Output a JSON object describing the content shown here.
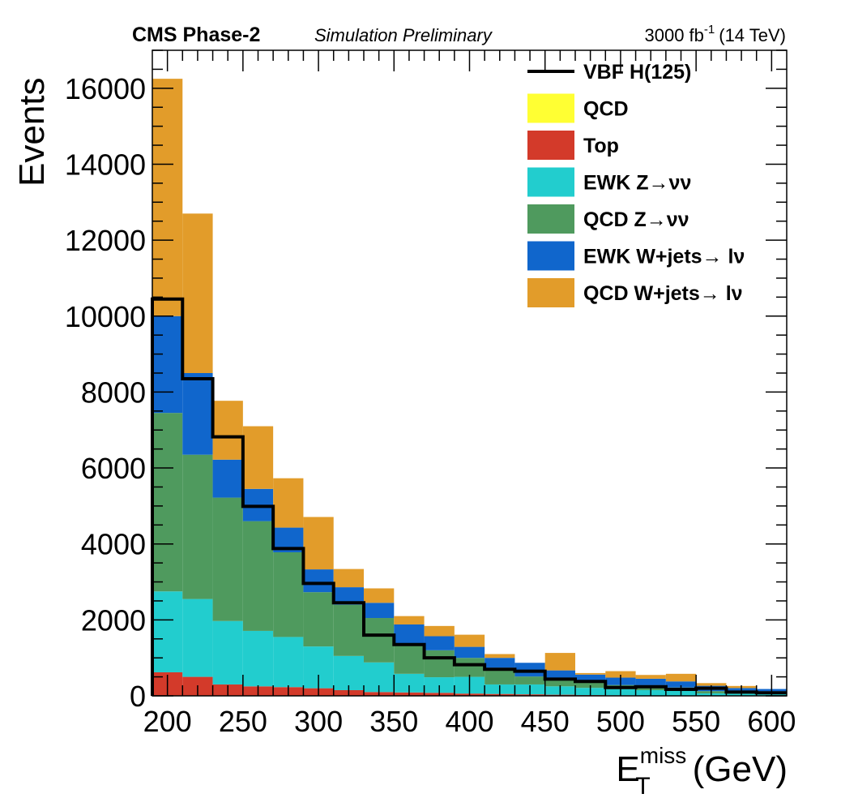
{
  "header": {
    "experiment": "CMS Phase-2",
    "status": "Simulation Preliminary",
    "lumi_value": "3000 fb",
    "lumi_exponent": "-1",
    "lumi_energy": "(14 TeV)"
  },
  "axes": {
    "x_title_main": "E",
    "x_title_sub": "T",
    "x_title_sup": "miss",
    "x_title_unit": "(GeV)",
    "y_title": "Events"
  },
  "chart_data": {
    "type": "bar",
    "stacked": true,
    "histogram": true,
    "bin_edges": [
      190,
      210,
      230,
      250,
      270,
      290,
      310,
      330,
      350,
      370,
      390,
      410,
      430,
      450,
      470,
      490,
      510,
      530,
      550,
      570,
      590,
      610
    ],
    "xlim": [
      190,
      610
    ],
    "ylim": [
      0,
      17000
    ],
    "x_ticks": [
      200,
      250,
      300,
      350,
      400,
      450,
      500,
      550,
      600
    ],
    "y_ticks": [
      0,
      2000,
      4000,
      6000,
      8000,
      10000,
      12000,
      14000,
      16000
    ],
    "xlabel": "E_T^miss (GeV)",
    "ylabel": "Events",
    "legend_position": "top-right",
    "series": [
      {
        "name": "Top",
        "color": "#d33a2a",
        "values": [
          620,
          500,
          300,
          250,
          230,
          200,
          150,
          100,
          90,
          80,
          60,
          50,
          40,
          30,
          20,
          15,
          10,
          10,
          5,
          5,
          0
        ]
      },
      {
        "name": "QCD",
        "color": "#ffff33",
        "values": [
          0,
          0,
          0,
          0,
          0,
          0,
          0,
          0,
          0,
          0,
          0,
          0,
          0,
          0,
          0,
          0,
          0,
          0,
          0,
          0,
          0
        ]
      },
      {
        "name": "EWK Z→νν",
        "color": "#22cdce",
        "values": [
          2130,
          2050,
          1670,
          1460,
          1320,
          1100,
          900,
          780,
          490,
          410,
          440,
          250,
          260,
          220,
          190,
          160,
          140,
          120,
          60,
          50,
          60
        ]
      },
      {
        "name": "QCD Z→νν",
        "color": "#4f9a5e",
        "values": [
          4700,
          3800,
          3250,
          2890,
          2230,
          1430,
          1350,
          1170,
          780,
          710,
          500,
          440,
          210,
          230,
          140,
          110,
          130,
          90,
          60,
          60,
          60
        ]
      },
      {
        "name": "EWK W+jets→ lν",
        "color": "#1066cc",
        "values": [
          2550,
          2150,
          1000,
          850,
          650,
          600,
          460,
          400,
          520,
          370,
          290,
          260,
          360,
          190,
          210,
          195,
          170,
          160,
          140,
          90,
          60
        ]
      },
      {
        "name": "QCD W+jets→ lν",
        "color": "#e29c2a",
        "values": [
          6250,
          4200,
          1550,
          1650,
          1300,
          1380,
          480,
          380,
          220,
          270,
          320,
          100,
          0,
          460,
          40,
          170,
          100,
          200,
          70,
          55,
          0
        ]
      }
    ],
    "signal": {
      "name": "VBF H(125)",
      "color": "#000000",
      "values": [
        10450,
        8350,
        6820,
        4990,
        3880,
        2960,
        2450,
        1600,
        1350,
        1000,
        820,
        700,
        650,
        440,
        380,
        220,
        240,
        170,
        200,
        100,
        80
      ]
    },
    "legend_order": [
      "VBF H(125)",
      "QCD",
      "Top",
      "EWK Z→νν",
      "QCD Z→νν",
      "EWK W+jets→ lν",
      "QCD W+jets→ lν"
    ]
  }
}
